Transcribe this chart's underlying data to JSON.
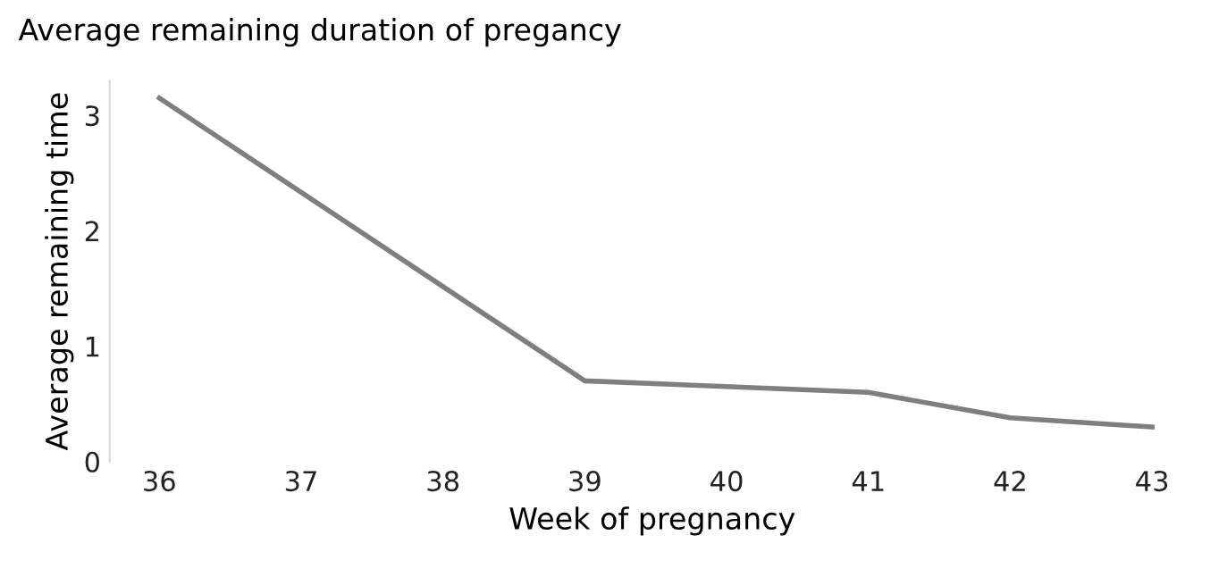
{
  "chart_data": {
    "type": "line",
    "title": "Average remaining duration of pregancy",
    "xlabel": "Week of pregnancy",
    "ylabel": "Average remaining time",
    "categories": [
      "36",
      "37",
      "38",
      "39",
      "40",
      "41",
      "42",
      "43"
    ],
    "series": [
      {
        "color": "#7f7f7f",
        "values": [
          3.15,
          null,
          null,
          0.7,
          null,
          0.6,
          0.38,
          0.3
        ]
      }
    ],
    "ylim": [
      0,
      3.3
    ],
    "yticks": [
      0,
      1,
      2,
      3
    ],
    "grid": false,
    "legend": false,
    "marker": "none",
    "line_style": "solid"
  }
}
